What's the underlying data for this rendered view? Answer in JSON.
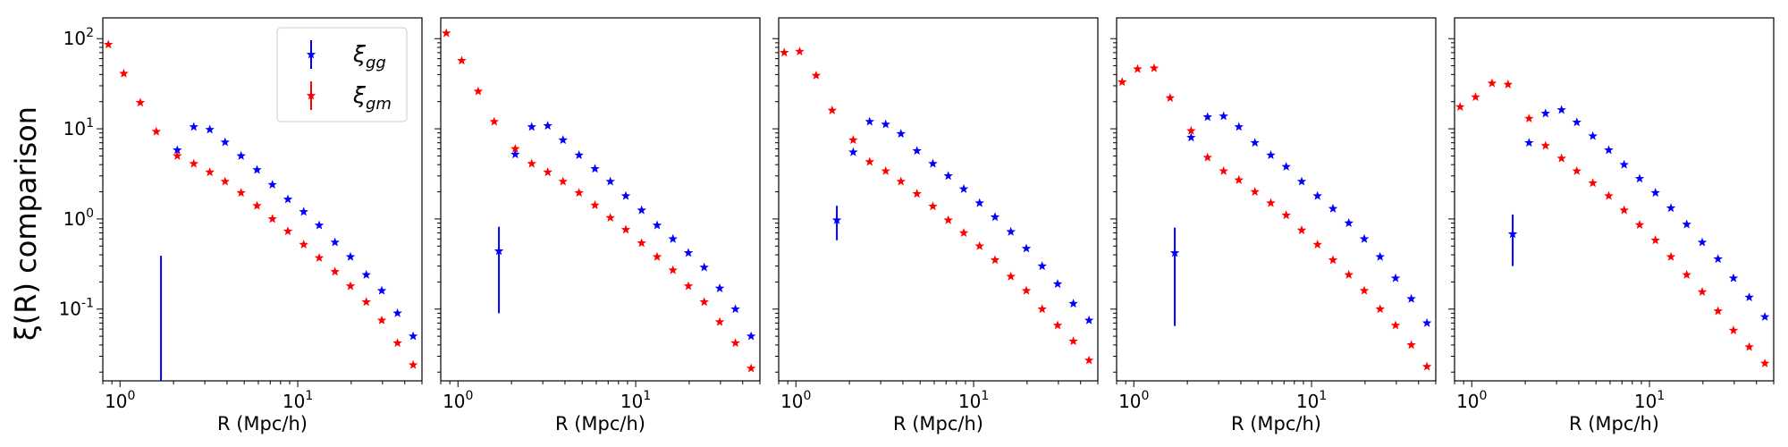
{
  "figure": {
    "ylabel": "ξ(R) comparison",
    "legend": {
      "position": "upper right of first panel",
      "entries": [
        "ξgg",
        "ξgm"
      ]
    },
    "colors": {
      "xi_gg": "#0000ff",
      "xi_gm": "#ff0000"
    }
  },
  "chart_data": [
    {
      "type": "scatter",
      "xlabel": "R  (Mpc/h)",
      "xscale": "log",
      "yscale": "log",
      "xlim": [
        0.8,
        50
      ],
      "ylim": [
        0.016,
        170
      ],
      "xticks": [
        "10^0",
        "10^1"
      ],
      "yticks": [
        "10^-1",
        "10^0",
        "10^1",
        "10^2"
      ],
      "grid": false,
      "series": [
        {
          "name": "ξgg",
          "marker": "star",
          "color": "#0000ff",
          "x": [
            2.1,
            2.6,
            3.2,
            3.9,
            4.8,
            5.9,
            7.2,
            8.8,
            10.8,
            13.2,
            16.2,
            19.8,
            24.3,
            29.7,
            36.4,
            44.6
          ],
          "y": [
            5.8,
            10.5,
            9.8,
            7.1,
            5.0,
            3.5,
            2.4,
            1.65,
            1.2,
            0.85,
            0.55,
            0.38,
            0.24,
            0.16,
            0.09,
            0.05
          ]
        },
        {
          "name": "ξgm",
          "marker": "star",
          "color": "#ff0000",
          "x": [
            0.86,
            1.05,
            1.3,
            1.6,
            2.1,
            2.6,
            3.2,
            3.9,
            4.8,
            5.9,
            7.2,
            8.8,
            10.8,
            13.2,
            16.2,
            19.8,
            24.3,
            29.7,
            36.4,
            44.6
          ],
          "y": [
            86,
            41,
            19.5,
            9.3,
            5.0,
            4.1,
            3.3,
            2.6,
            1.95,
            1.4,
            1.0,
            0.73,
            0.52,
            0.37,
            0.26,
            0.18,
            0.12,
            0.075,
            0.042,
            0.024
          ]
        }
      ],
      "errorbars": [
        {
          "series": "ξgg",
          "x": 1.7,
          "y": 0.012,
          "low": 0.012,
          "high": 0.39
        }
      ]
    },
    {
      "type": "scatter",
      "xlabel": "R  (Mpc/h)",
      "xscale": "log",
      "yscale": "log",
      "xlim": [
        0.8,
        50
      ],
      "ylim": [
        0.016,
        170
      ],
      "xticks": [
        "10^0",
        "10^1"
      ],
      "yticks": [],
      "grid": false,
      "series": [
        {
          "name": "ξgg",
          "marker": "star",
          "color": "#0000ff",
          "x": [
            2.1,
            2.6,
            3.2,
            3.9,
            4.8,
            5.9,
            7.2,
            8.8,
            10.8,
            13.2,
            16.2,
            19.8,
            24.3,
            29.7,
            36.4,
            44.6
          ],
          "y": [
            5.2,
            10.5,
            10.8,
            7.5,
            5.1,
            3.6,
            2.6,
            1.8,
            1.25,
            0.85,
            0.6,
            0.42,
            0.29,
            0.17,
            0.1,
            0.05
          ]
        },
        {
          "name": "ξgm",
          "marker": "star",
          "color": "#ff0000",
          "x": [
            0.86,
            1.05,
            1.3,
            1.6,
            2.1,
            2.6,
            3.2,
            3.9,
            4.8,
            5.9,
            7.2,
            8.8,
            10.8,
            13.2,
            16.2,
            19.8,
            24.3,
            29.7,
            36.4,
            44.6
          ],
          "y": [
            115,
            57,
            26,
            12,
            6.0,
            4.1,
            3.3,
            2.6,
            1.95,
            1.42,
            1.03,
            0.76,
            0.54,
            0.38,
            0.27,
            0.18,
            0.12,
            0.072,
            0.042,
            0.022
          ]
        }
      ],
      "errorbars": [
        {
          "series": "ξgg",
          "x": 1.7,
          "y": 0.44,
          "low": 0.09,
          "high": 0.82
        }
      ]
    },
    {
      "type": "scatter",
      "xlabel": "R  (Mpc/h)",
      "xscale": "log",
      "yscale": "log",
      "xlim": [
        0.8,
        50
      ],
      "ylim": [
        0.016,
        170
      ],
      "xticks": [
        "10^0",
        "10^1"
      ],
      "yticks": [],
      "grid": false,
      "series": [
        {
          "name": "ξgg",
          "marker": "star",
          "color": "#0000ff",
          "x": [
            2.1,
            2.6,
            3.2,
            3.9,
            4.8,
            5.9,
            7.2,
            8.8,
            10.8,
            13.2,
            16.2,
            19.8,
            24.3,
            29.7,
            36.4,
            44.6
          ],
          "y": [
            5.5,
            12,
            11.2,
            8.8,
            5.7,
            4.1,
            3.0,
            2.15,
            1.5,
            1.05,
            0.72,
            0.47,
            0.3,
            0.19,
            0.115,
            0.075
          ]
        },
        {
          "name": "ξgm",
          "marker": "star",
          "color": "#ff0000",
          "x": [
            0.86,
            1.05,
            1.3,
            1.6,
            2.1,
            2.6,
            3.2,
            3.9,
            4.8,
            5.9,
            7.2,
            8.8,
            10.8,
            13.2,
            16.2,
            19.8,
            24.3,
            29.7,
            36.4,
            44.6
          ],
          "y": [
            70,
            72,
            39,
            16,
            7.5,
            4.3,
            3.4,
            2.6,
            1.9,
            1.38,
            0.97,
            0.7,
            0.5,
            0.35,
            0.23,
            0.16,
            0.1,
            0.066,
            0.044,
            0.027
          ]
        }
      ],
      "errorbars": [
        {
          "series": "ξgg",
          "x": 1.7,
          "y": 0.97,
          "low": 0.58,
          "high": 1.4
        }
      ]
    },
    {
      "type": "scatter",
      "xlabel": "R  (Mpc/h)",
      "xscale": "log",
      "yscale": "log",
      "xlim": [
        0.8,
        50
      ],
      "ylim": [
        0.016,
        170
      ],
      "xticks": [
        "10^0",
        "10^1"
      ],
      "yticks": [],
      "grid": false,
      "series": [
        {
          "name": "ξgg",
          "marker": "star",
          "color": "#0000ff",
          "x": [
            2.1,
            2.6,
            3.2,
            3.9,
            4.8,
            5.9,
            7.2,
            8.8,
            10.8,
            13.2,
            16.2,
            19.8,
            24.3,
            29.7,
            36.4,
            44.6
          ],
          "y": [
            8,
            13.5,
            13.8,
            10.5,
            7.0,
            5.1,
            3.8,
            2.6,
            1.8,
            1.3,
            0.9,
            0.6,
            0.38,
            0.22,
            0.13,
            0.07
          ]
        },
        {
          "name": "ξgm",
          "marker": "star",
          "color": "#ff0000",
          "x": [
            0.86,
            1.05,
            1.3,
            1.6,
            2.1,
            2.6,
            3.2,
            3.9,
            4.8,
            5.9,
            7.2,
            8.8,
            10.8,
            13.2,
            16.2,
            19.8,
            24.3,
            29.7,
            36.4,
            44.6
          ],
          "y": [
            33,
            46,
            47,
            22,
            9.5,
            4.8,
            3.4,
            2.7,
            2.0,
            1.5,
            1.1,
            0.75,
            0.52,
            0.35,
            0.24,
            0.16,
            0.1,
            0.066,
            0.04,
            0.023
          ]
        }
      ],
      "errorbars": [
        {
          "series": "ξgg",
          "x": 1.7,
          "y": 0.42,
          "low": 0.065,
          "high": 0.8
        }
      ]
    },
    {
      "type": "scatter",
      "xlabel": "R  (Mpc/h)",
      "xscale": "log",
      "yscale": "log",
      "xlim": [
        0.8,
        50
      ],
      "ylim": [
        0.016,
        170
      ],
      "xticks": [
        "10^0",
        "10^1"
      ],
      "yticks": [],
      "grid": false,
      "series": [
        {
          "name": "ξgg",
          "marker": "star",
          "color": "#0000ff",
          "x": [
            2.1,
            2.6,
            3.2,
            3.9,
            4.8,
            5.9,
            7.2,
            8.8,
            10.8,
            13.2,
            16.2,
            19.8,
            24.3,
            29.7,
            36.4,
            44.6
          ],
          "y": [
            7.0,
            14.8,
            16.2,
            11.8,
            8.3,
            5.8,
            4.0,
            2.8,
            1.95,
            1.32,
            0.87,
            0.55,
            0.36,
            0.22,
            0.135,
            0.082
          ]
        },
        {
          "name": "ξgm",
          "marker": "star",
          "color": "#ff0000",
          "x": [
            0.86,
            1.05,
            1.3,
            1.6,
            2.1,
            2.6,
            3.2,
            3.9,
            4.8,
            5.9,
            7.2,
            8.8,
            10.8,
            13.2,
            16.2,
            19.8,
            24.3,
            29.7,
            36.4,
            44.6
          ],
          "y": [
            17.5,
            22.5,
            32,
            31,
            13,
            6.5,
            4.7,
            3.4,
            2.5,
            1.8,
            1.25,
            0.86,
            0.58,
            0.38,
            0.24,
            0.155,
            0.095,
            0.058,
            0.038,
            0.025
          ]
        }
      ],
      "errorbars": [
        {
          "series": "ξgg",
          "x": 1.7,
          "y": 0.68,
          "low": 0.3,
          "high": 1.12
        }
      ]
    }
  ]
}
